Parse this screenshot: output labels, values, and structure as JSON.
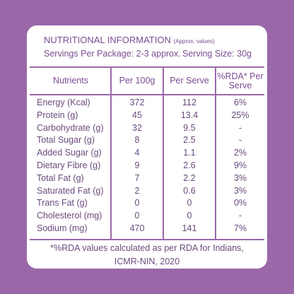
{
  "header": {
    "title": "NUTRITIONAL INFORMATION",
    "note": "(Approx. values)"
  },
  "servings": {
    "per_package": "Servings Per Package: 2-3 approx.",
    "size": "Serving Size: 30g"
  },
  "table": {
    "columns": [
      "Nutrients",
      "Per 100g",
      "Per Serve",
      "%RDA* Per Serve"
    ],
    "rows": [
      [
        "Energy (Kcal)",
        "372",
        "112",
        "6%"
      ],
      [
        "Protein (g)",
        "45",
        "13.4",
        "25%"
      ],
      [
        "Carbohydrate (g)",
        "32",
        "9.5",
        "-"
      ],
      [
        "Total Sugar (g)",
        "8",
        "2.5",
        "-"
      ],
      [
        "Added Sugar (g)",
        "4",
        "1.1",
        "2%"
      ],
      [
        "Dietary Fibre (g)",
        "9",
        "2.6",
        "9%"
      ],
      [
        "Total Fat (g)",
        "7",
        "2.2",
        "3%"
      ],
      [
        "Saturated Fat (g)",
        "2",
        "0.6",
        "3%"
      ],
      [
        "Trans Fat (g)",
        "0",
        "0",
        "0%"
      ],
      [
        "Cholesterol (mg)",
        "0",
        "0",
        "-"
      ],
      [
        "Sodium (mg)",
        "470",
        "141",
        "7%"
      ]
    ]
  },
  "footnote": [
    "*%RDA values calculated as per RDA for Indians,",
    "ICMR-NIN, 2020"
  ]
}
